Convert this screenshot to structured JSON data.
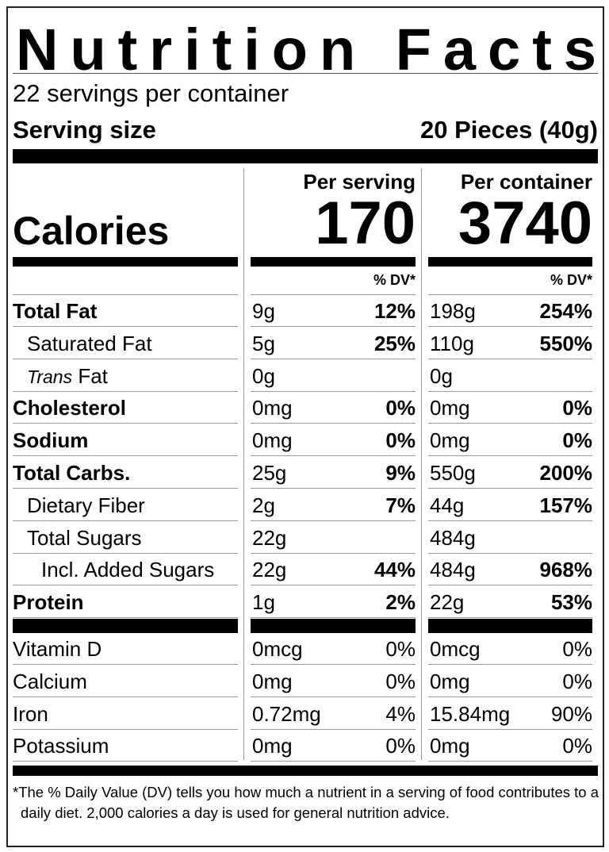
{
  "title": "Nutrition Facts",
  "servings": "22 servings per container",
  "serving_size": {
    "label": "Serving size",
    "value": "20 Pieces (40g)"
  },
  "calories_label": "Calories",
  "columns": [
    {
      "heading": "Per serving",
      "calories": "170",
      "dv_heading": "% DV*"
    },
    {
      "heading": "Per container",
      "calories": "3740",
      "dv_heading": "% DV*"
    }
  ],
  "nutrients": [
    {
      "name": "Total Fat",
      "bold": true,
      "indent": 0,
      "values": [
        [
          "9g",
          "12%"
        ],
        [
          "198g",
          "254%"
        ]
      ]
    },
    {
      "name": "Saturated Fat",
      "bold": false,
      "indent": 1,
      "values": [
        [
          "5g",
          "25%"
        ],
        [
          "110g",
          "550%"
        ]
      ]
    },
    {
      "name_italic": "Trans",
      "name": "Fat",
      "bold": false,
      "indent": 1,
      "values": [
        [
          "0g"
        ],
        [
          "0g"
        ]
      ]
    },
    {
      "name": "Cholesterol",
      "bold": true,
      "indent": 0,
      "values": [
        [
          "0mg",
          "0%"
        ],
        [
          "0mg",
          "0%"
        ]
      ]
    },
    {
      "name": "Sodium",
      "bold": true,
      "indent": 0,
      "values": [
        [
          "0mg",
          "0%"
        ],
        [
          "0mg",
          "0%"
        ]
      ]
    },
    {
      "name": "Total Carbs.",
      "bold": true,
      "indent": 0,
      "values": [
        [
          "25g",
          "9%"
        ],
        [
          "550g",
          "200%"
        ]
      ]
    },
    {
      "name": "Dietary Fiber",
      "bold": false,
      "indent": 1,
      "values": [
        [
          "2g",
          "7%"
        ],
        [
          "44g",
          "157%"
        ]
      ]
    },
    {
      "name": "Total Sugars",
      "bold": false,
      "indent": 1,
      "values": [
        [
          "22g"
        ],
        [
          "484g"
        ]
      ]
    },
    {
      "name": "Incl. Added Sugars",
      "bold": false,
      "indent": 2,
      "values": [
        [
          "22g",
          "44%"
        ],
        [
          "484g",
          "968%"
        ]
      ]
    },
    {
      "name": "Protein",
      "bold": true,
      "indent": 0,
      "values": [
        [
          "1g",
          "2%"
        ],
        [
          "22g",
          "53%"
        ]
      ]
    }
  ],
  "vitamins": [
    {
      "name": "Vitamin D",
      "values": [
        [
          "0mcg",
          "0%"
        ],
        [
          "0mcg",
          "0%"
        ]
      ]
    },
    {
      "name": "Calcium",
      "values": [
        [
          "0mg",
          "0%"
        ],
        [
          "0mg",
          "0%"
        ]
      ]
    },
    {
      "name": "Iron",
      "values": [
        [
          "0.72mg",
          "4%"
        ],
        [
          "15.84mg",
          "90%"
        ]
      ]
    },
    {
      "name": "Potassium",
      "values": [
        [
          "0mg",
          "0%"
        ],
        [
          "0mg",
          "0%"
        ]
      ]
    }
  ],
  "footnote": "*The % Daily Value (DV) tells you how much a nutrient in a serving of food contributes to a daily diet. 2,000 calories a day is used for general nutrition advice."
}
